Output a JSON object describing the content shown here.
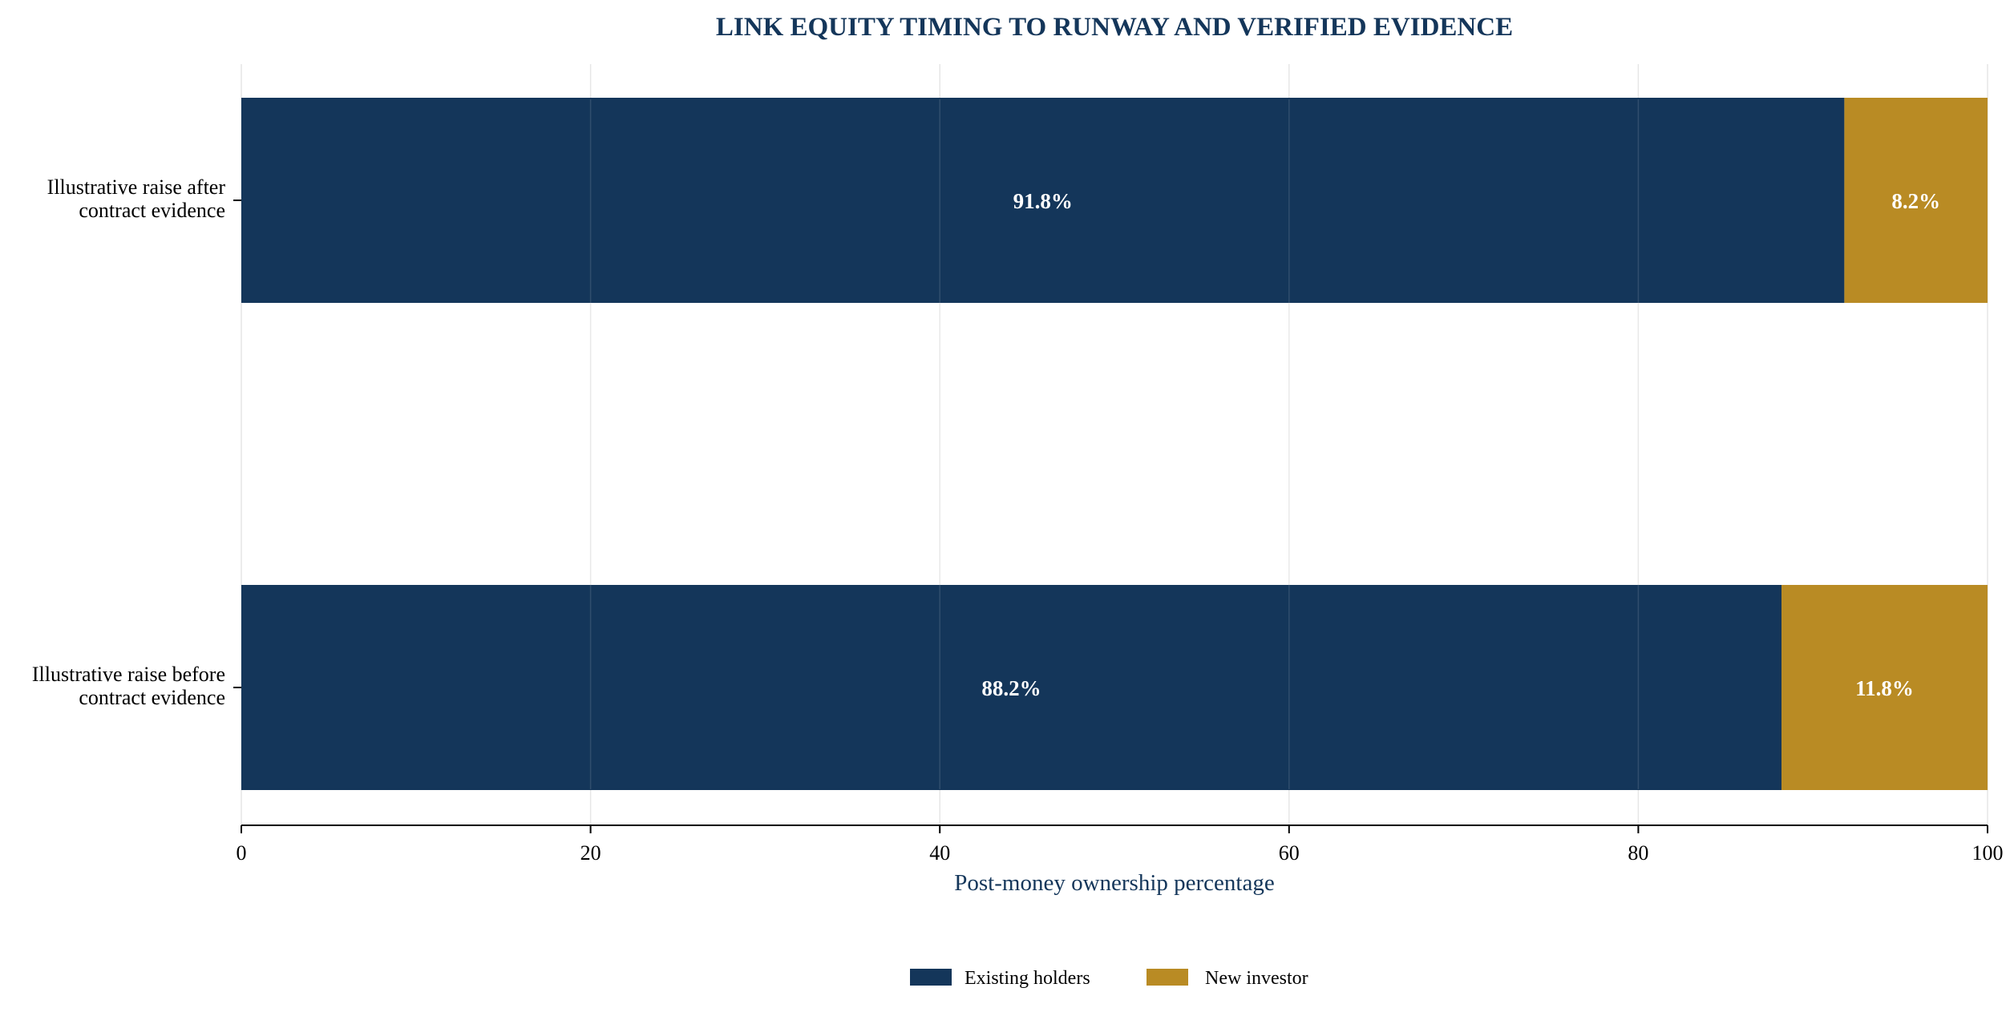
{
  "chart_data": {
    "type": "bar",
    "orientation": "horizontal",
    "stacked": true,
    "title": "LINK EQUITY TIMING TO RUNWAY AND VERIFIED EVIDENCE",
    "xlabel": "Post-money ownership percentage",
    "ylabel": "",
    "xlim": [
      0,
      100
    ],
    "xticks": [
      0,
      20,
      40,
      60,
      80,
      100
    ],
    "grid": true,
    "legend_position": "bottom-center",
    "categories": [
      [
        "Illustrative raise after",
        "contract evidence"
      ],
      [
        "Illustrative raise before",
        "contract evidence"
      ]
    ],
    "series": [
      {
        "name": "Existing holders",
        "color": "#14365a",
        "values": [
          91.8,
          88.2
        ],
        "labels": [
          "91.8%",
          "88.2%"
        ]
      },
      {
        "name": "New investor",
        "color": "#b98b24",
        "values": [
          8.2,
          11.8
        ],
        "labels": [
          "8.2%",
          "11.8%"
        ]
      }
    ]
  }
}
